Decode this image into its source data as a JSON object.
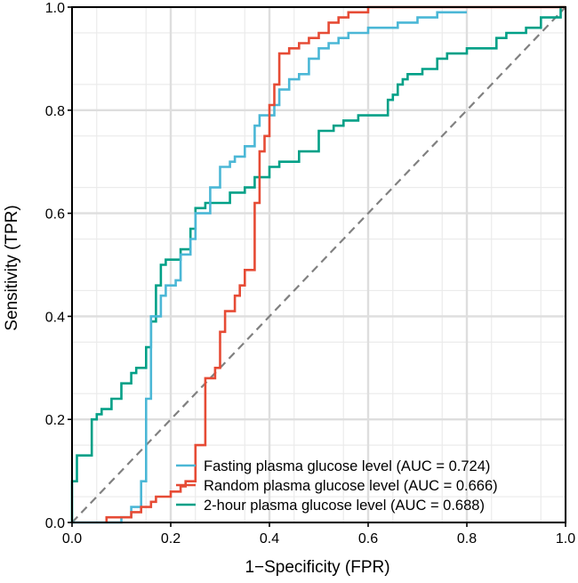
{
  "chart_data": {
    "type": "line",
    "title": "",
    "xlabel": "1−Specificity (FPR)",
    "ylabel": "Sensitivity (TPR)",
    "xlim": [
      0,
      1
    ],
    "ylim": [
      0,
      1
    ],
    "x_ticks": [
      0.0,
      0.2,
      0.4,
      0.6,
      0.8,
      1.0
    ],
    "y_ticks": [
      0.0,
      0.2,
      0.4,
      0.6,
      0.8,
      1.0
    ],
    "x_tick_labels": [
      "0.0",
      "0.2",
      "0.4",
      "0.6",
      "0.8",
      "1.0"
    ],
    "y_tick_labels": [
      "0.0",
      "0.2",
      "0.4",
      "0.6",
      "0.8",
      "1.0"
    ],
    "grid": true,
    "legend_position": "bottom-right",
    "diagonal_reference": {
      "from": [
        0,
        0
      ],
      "to": [
        1,
        1
      ],
      "color": "#808080",
      "style": "dashed"
    },
    "series": [
      {
        "name": "Fasting plasma glucose level (AUC = 0.724)",
        "color": "#4BB7D6",
        "points": [
          [
            0,
            0
          ],
          [
            0.1,
            0
          ],
          [
            0.1,
            0.01
          ],
          [
            0.12,
            0.01
          ],
          [
            0.12,
            0.03
          ],
          [
            0.14,
            0.03
          ],
          [
            0.14,
            0.08
          ],
          [
            0.15,
            0.08
          ],
          [
            0.15,
            0.24
          ],
          [
            0.16,
            0.24
          ],
          [
            0.16,
            0.4
          ],
          [
            0.18,
            0.4
          ],
          [
            0.18,
            0.44
          ],
          [
            0.19,
            0.44
          ],
          [
            0.19,
            0.46
          ],
          [
            0.21,
            0.46
          ],
          [
            0.21,
            0.47
          ],
          [
            0.22,
            0.47
          ],
          [
            0.22,
            0.52
          ],
          [
            0.24,
            0.52
          ],
          [
            0.24,
            0.55
          ],
          [
            0.25,
            0.55
          ],
          [
            0.25,
            0.6
          ],
          [
            0.28,
            0.6
          ],
          [
            0.28,
            0.65
          ],
          [
            0.3,
            0.65
          ],
          [
            0.3,
            0.69
          ],
          [
            0.32,
            0.69
          ],
          [
            0.32,
            0.7
          ],
          [
            0.33,
            0.7
          ],
          [
            0.33,
            0.71
          ],
          [
            0.35,
            0.71
          ],
          [
            0.35,
            0.73
          ],
          [
            0.37,
            0.73
          ],
          [
            0.37,
            0.77
          ],
          [
            0.38,
            0.77
          ],
          [
            0.38,
            0.79
          ],
          [
            0.41,
            0.79
          ],
          [
            0.41,
            0.81
          ],
          [
            0.42,
            0.81
          ],
          [
            0.42,
            0.84
          ],
          [
            0.44,
            0.84
          ],
          [
            0.44,
            0.86
          ],
          [
            0.46,
            0.86
          ],
          [
            0.46,
            0.87
          ],
          [
            0.48,
            0.87
          ],
          [
            0.48,
            0.9
          ],
          [
            0.5,
            0.9
          ],
          [
            0.5,
            0.92
          ],
          [
            0.52,
            0.92
          ],
          [
            0.52,
            0.93
          ],
          [
            0.54,
            0.93
          ],
          [
            0.54,
            0.94
          ],
          [
            0.56,
            0.94
          ],
          [
            0.56,
            0.95
          ],
          [
            0.6,
            0.95
          ],
          [
            0.6,
            0.96
          ],
          [
            0.66,
            0.96
          ],
          [
            0.66,
            0.97
          ],
          [
            0.7,
            0.97
          ],
          [
            0.7,
            0.98
          ],
          [
            0.74,
            0.98
          ],
          [
            0.74,
            0.99
          ],
          [
            0.8,
            0.99
          ]
        ]
      },
      {
        "name": "Random plasma glucose level (AUC = 0.666)",
        "color": "#E64B35",
        "points": [
          [
            0.07,
            0
          ],
          [
            0.07,
            0.01
          ],
          [
            0.12,
            0.01
          ],
          [
            0.12,
            0.02
          ],
          [
            0.14,
            0.02
          ],
          [
            0.14,
            0.03
          ],
          [
            0.16,
            0.03
          ],
          [
            0.16,
            0.04
          ],
          [
            0.17,
            0.04
          ],
          [
            0.17,
            0.05
          ],
          [
            0.2,
            0.05
          ],
          [
            0.2,
            0.06
          ],
          [
            0.22,
            0.06
          ],
          [
            0.22,
            0.07
          ],
          [
            0.23,
            0.07
          ],
          [
            0.23,
            0.08
          ],
          [
            0.25,
            0.08
          ],
          [
            0.25,
            0.15
          ],
          [
            0.27,
            0.15
          ],
          [
            0.27,
            0.28
          ],
          [
            0.29,
            0.28
          ],
          [
            0.29,
            0.3
          ],
          [
            0.3,
            0.3
          ],
          [
            0.3,
            0.37
          ],
          [
            0.31,
            0.37
          ],
          [
            0.31,
            0.41
          ],
          [
            0.33,
            0.41
          ],
          [
            0.33,
            0.44
          ],
          [
            0.34,
            0.44
          ],
          [
            0.34,
            0.46
          ],
          [
            0.35,
            0.46
          ],
          [
            0.35,
            0.49
          ],
          [
            0.37,
            0.49
          ],
          [
            0.37,
            0.62
          ],
          [
            0.38,
            0.62
          ],
          [
            0.38,
            0.72
          ],
          [
            0.39,
            0.72
          ],
          [
            0.39,
            0.75
          ],
          [
            0.4,
            0.75
          ],
          [
            0.4,
            0.81
          ],
          [
            0.41,
            0.81
          ],
          [
            0.41,
            0.85
          ],
          [
            0.42,
            0.85
          ],
          [
            0.42,
            0.91
          ],
          [
            0.44,
            0.91
          ],
          [
            0.44,
            0.92
          ],
          [
            0.46,
            0.92
          ],
          [
            0.46,
            0.93
          ],
          [
            0.48,
            0.93
          ],
          [
            0.48,
            0.94
          ],
          [
            0.5,
            0.94
          ],
          [
            0.5,
            0.95
          ],
          [
            0.52,
            0.95
          ],
          [
            0.52,
            0.97
          ],
          [
            0.54,
            0.97
          ],
          [
            0.54,
            0.98
          ],
          [
            0.56,
            0.98
          ],
          [
            0.56,
            0.99
          ],
          [
            0.6,
            0.99
          ],
          [
            0.6,
            1.0
          ],
          [
            1.0,
            1.0
          ]
        ]
      },
      {
        "name": "2-hour plasma glucose level (AUC = 0.688)",
        "color": "#00A087",
        "points": [
          [
            0,
            0
          ],
          [
            0,
            0.08
          ],
          [
            0.01,
            0.08
          ],
          [
            0.01,
            0.13
          ],
          [
            0.04,
            0.13
          ],
          [
            0.04,
            0.2
          ],
          [
            0.05,
            0.2
          ],
          [
            0.05,
            0.21
          ],
          [
            0.06,
            0.21
          ],
          [
            0.06,
            0.22
          ],
          [
            0.08,
            0.22
          ],
          [
            0.08,
            0.24
          ],
          [
            0.1,
            0.24
          ],
          [
            0.1,
            0.27
          ],
          [
            0.12,
            0.27
          ],
          [
            0.12,
            0.29
          ],
          [
            0.13,
            0.29
          ],
          [
            0.13,
            0.3
          ],
          [
            0.15,
            0.3
          ],
          [
            0.15,
            0.34
          ],
          [
            0.16,
            0.34
          ],
          [
            0.16,
            0.39
          ],
          [
            0.17,
            0.39
          ],
          [
            0.17,
            0.46
          ],
          [
            0.18,
            0.46
          ],
          [
            0.18,
            0.5
          ],
          [
            0.19,
            0.5
          ],
          [
            0.19,
            0.51
          ],
          [
            0.22,
            0.51
          ],
          [
            0.22,
            0.53
          ],
          [
            0.24,
            0.53
          ],
          [
            0.24,
            0.57
          ],
          [
            0.25,
            0.57
          ],
          [
            0.25,
            0.61
          ],
          [
            0.27,
            0.61
          ],
          [
            0.27,
            0.62
          ],
          [
            0.32,
            0.62
          ],
          [
            0.32,
            0.64
          ],
          [
            0.35,
            0.64
          ],
          [
            0.35,
            0.65
          ],
          [
            0.37,
            0.65
          ],
          [
            0.37,
            0.67
          ],
          [
            0.4,
            0.67
          ],
          [
            0.4,
            0.69
          ],
          [
            0.42,
            0.69
          ],
          [
            0.42,
            0.7
          ],
          [
            0.46,
            0.7
          ],
          [
            0.46,
            0.72
          ],
          [
            0.5,
            0.72
          ],
          [
            0.5,
            0.76
          ],
          [
            0.53,
            0.76
          ],
          [
            0.53,
            0.77
          ],
          [
            0.55,
            0.77
          ],
          [
            0.55,
            0.78
          ],
          [
            0.58,
            0.78
          ],
          [
            0.58,
            0.79
          ],
          [
            0.64,
            0.79
          ],
          [
            0.64,
            0.82
          ],
          [
            0.65,
            0.82
          ],
          [
            0.65,
            0.83
          ],
          [
            0.66,
            0.83
          ],
          [
            0.66,
            0.85
          ],
          [
            0.67,
            0.85
          ],
          [
            0.67,
            0.86
          ],
          [
            0.68,
            0.86
          ],
          [
            0.68,
            0.87
          ],
          [
            0.71,
            0.87
          ],
          [
            0.71,
            0.88
          ],
          [
            0.74,
            0.88
          ],
          [
            0.74,
            0.9
          ],
          [
            0.76,
            0.9
          ],
          [
            0.76,
            0.91
          ],
          [
            0.8,
            0.91
          ],
          [
            0.8,
            0.92
          ],
          [
            0.86,
            0.92
          ],
          [
            0.86,
            0.94
          ],
          [
            0.88,
            0.94
          ],
          [
            0.88,
            0.95
          ],
          [
            0.92,
            0.95
          ],
          [
            0.92,
            0.96
          ],
          [
            0.95,
            0.96
          ],
          [
            0.95,
            0.98
          ],
          [
            0.99,
            0.98
          ],
          [
            0.99,
            1.0
          ],
          [
            1.0,
            1.0
          ]
        ]
      }
    ]
  }
}
